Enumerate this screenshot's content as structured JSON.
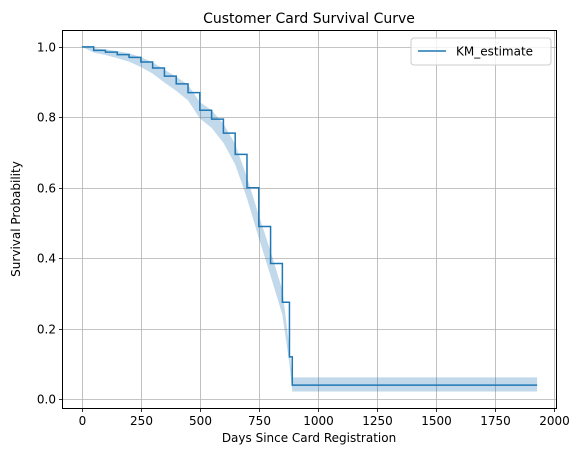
{
  "chart_data": {
    "type": "line",
    "title": "Customer Card Survival Curve",
    "xlabel": "Days Since Card Registration",
    "ylabel": "Survival Probability",
    "xlim": [
      -80,
      2010
    ],
    "ylim": [
      -0.025,
      1.045
    ],
    "x_ticks": [
      0,
      250,
      500,
      750,
      1000,
      1250,
      1500,
      1750,
      2000
    ],
    "y_ticks": [
      0.0,
      0.2,
      0.4,
      0.6,
      0.8,
      1.0
    ],
    "grid": true,
    "legend_position": "top-right",
    "series": [
      {
        "name": "KM_estimate",
        "color": "#1f77b4",
        "band_color": "#1f77b4",
        "points": [
          [
            0,
            1.0
          ],
          [
            50,
            0.99
          ],
          [
            100,
            0.985
          ],
          [
            150,
            0.978
          ],
          [
            200,
            0.97
          ],
          [
            250,
            0.957
          ],
          [
            300,
            0.94
          ],
          [
            350,
            0.917
          ],
          [
            400,
            0.895
          ],
          [
            450,
            0.87
          ],
          [
            500,
            0.82
          ],
          [
            550,
            0.795
          ],
          [
            600,
            0.755
          ],
          [
            650,
            0.695
          ],
          [
            700,
            0.6
          ],
          [
            750,
            0.49
          ],
          [
            800,
            0.385
          ],
          [
            850,
            0.275
          ],
          [
            880,
            0.12
          ],
          [
            892,
            0.04
          ],
          [
            1000,
            0.04
          ],
          [
            1500,
            0.04
          ],
          [
            1930,
            0.04
          ]
        ],
        "ci_lower": [
          [
            0,
            1.0
          ],
          [
            50,
            0.984
          ],
          [
            100,
            0.977
          ],
          [
            150,
            0.968
          ],
          [
            200,
            0.958
          ],
          [
            250,
            0.943
          ],
          [
            300,
            0.924
          ],
          [
            350,
            0.899
          ],
          [
            400,
            0.875
          ],
          [
            450,
            0.848
          ],
          [
            500,
            0.797
          ],
          [
            550,
            0.77
          ],
          [
            600,
            0.728
          ],
          [
            650,
            0.666
          ],
          [
            700,
            0.57
          ],
          [
            750,
            0.458
          ],
          [
            800,
            0.35
          ],
          [
            850,
            0.24
          ],
          [
            880,
            0.1
          ],
          [
            892,
            0.022
          ],
          [
            1000,
            0.022
          ],
          [
            1500,
            0.022
          ],
          [
            1930,
            0.022
          ]
        ],
        "ci_upper": [
          [
            0,
            1.0
          ],
          [
            50,
            0.996
          ],
          [
            100,
            0.993
          ],
          [
            150,
            0.988
          ],
          [
            200,
            0.982
          ],
          [
            250,
            0.971
          ],
          [
            300,
            0.956
          ],
          [
            350,
            0.935
          ],
          [
            400,
            0.915
          ],
          [
            450,
            0.892
          ],
          [
            500,
            0.843
          ],
          [
            550,
            0.82
          ],
          [
            600,
            0.782
          ],
          [
            650,
            0.724
          ],
          [
            700,
            0.63
          ],
          [
            750,
            0.522
          ],
          [
            800,
            0.42
          ],
          [
            850,
            0.31
          ],
          [
            880,
            0.145
          ],
          [
            892,
            0.062
          ],
          [
            1000,
            0.062
          ],
          [
            1500,
            0.062
          ],
          [
            1930,
            0.062
          ]
        ]
      }
    ]
  }
}
